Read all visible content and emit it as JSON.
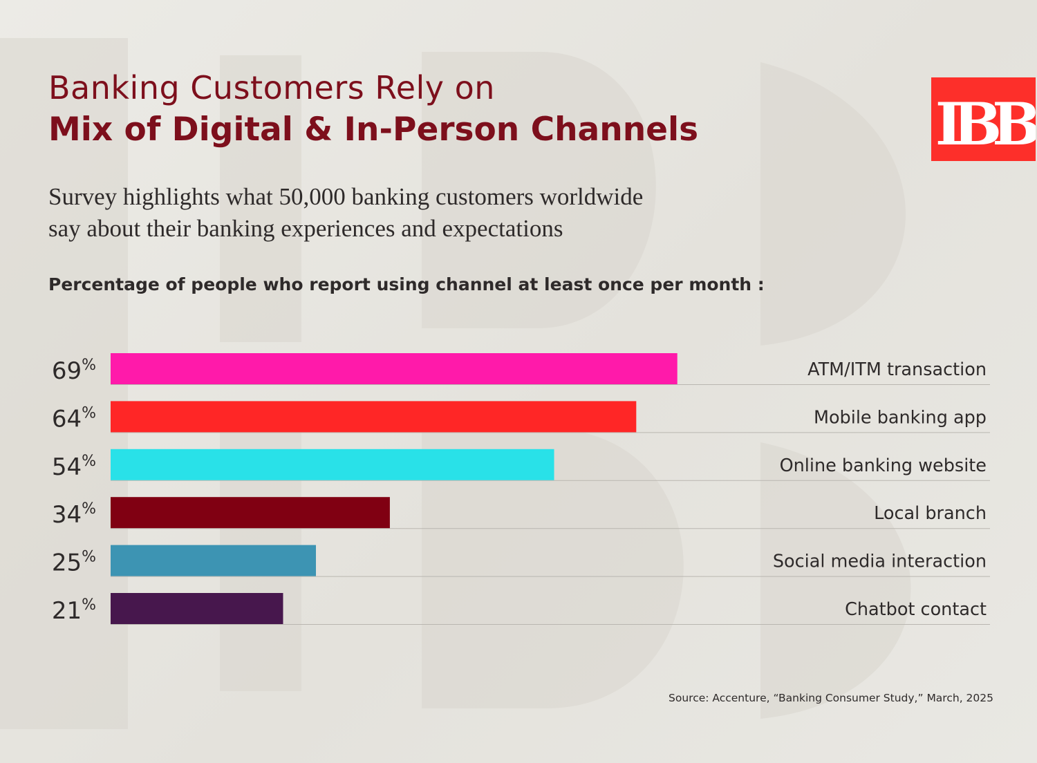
{
  "header": {
    "title_line1": "Banking Customers Rely on",
    "title_line2": "Mix of Digital & In-Person Channels",
    "subtitle_line1": "Survey highlights what 50,000 banking customers worldwide",
    "subtitle_line2": "say about their banking experiences and expectations",
    "question": "Percentage of people who report using channel at least once per month :"
  },
  "logo": {
    "text": "IBB",
    "background": "#fd2f2a",
    "color": "#ffffff"
  },
  "source": "Source: Accenture, “Banking Consumer Study,” March, 2025",
  "colors": {
    "title": "#7d0f1c",
    "text": "#2e2a2a",
    "rule": "#b9b6b0"
  },
  "chart_data": {
    "type": "bar",
    "orientation": "horizontal",
    "title": "Percentage of people who report using channel at least once per month :",
    "xlim": [
      0,
      100
    ],
    "grid": false,
    "value_suffix": "%",
    "categories": [
      "ATM/ITM transaction",
      "Mobile banking app",
      "Online banking website",
      "Local branch",
      "Social media interaction",
      "Chatbot contact"
    ],
    "values": [
      69,
      64,
      54,
      34,
      25,
      21
    ],
    "colors": [
      "#ff1aaa",
      "#ff2626",
      "#29e1e8",
      "#800012",
      "#3d94b3",
      "#47174d"
    ]
  }
}
